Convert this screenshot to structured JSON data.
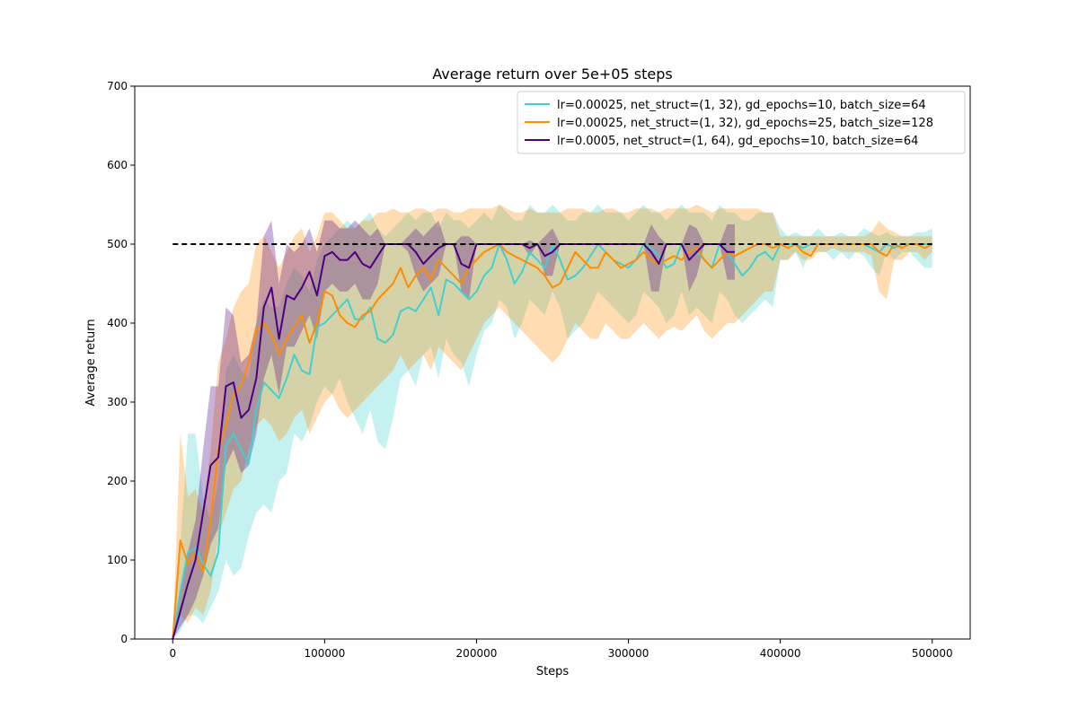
{
  "chart_data": {
    "type": "line",
    "title": "Average return over 5e+05 steps",
    "xlabel": "Steps",
    "ylabel": "Average return",
    "xlim": [
      -25000,
      525000
    ],
    "ylim": [
      0,
      700
    ],
    "xticks": [
      0,
      100000,
      200000,
      300000,
      400000,
      500000
    ],
    "xtick_labels": [
      "0",
      "100000",
      "200000",
      "300000",
      "400000",
      "500000"
    ],
    "yticks": [
      0,
      100,
      200,
      300,
      400,
      500,
      600,
      700
    ],
    "ytick_labels": [
      "0",
      "100",
      "200",
      "300",
      "400",
      "500",
      "600",
      "700"
    ],
    "grid": false,
    "legend_position": "top-right",
    "reference_line": {
      "y": 500,
      "x": [
        0,
        500000
      ],
      "style": "dashed",
      "color": "#000000"
    },
    "series": [
      {
        "name": "lr=0.00025, net_struct=(1, 32), gd_epochs=10, batch_size=64",
        "color": "#40d0d0",
        "x": [
          0,
          5000,
          10000,
          15000,
          20000,
          25000,
          30000,
          35000,
          40000,
          45000,
          50000,
          55000,
          60000,
          65000,
          70000,
          75000,
          80000,
          85000,
          90000,
          95000,
          100000,
          105000,
          110000,
          115000,
          120000,
          125000,
          130000,
          135000,
          140000,
          145000,
          150000,
          155000,
          160000,
          165000,
          170000,
          175000,
          180000,
          185000,
          190000,
          195000,
          200000,
          205000,
          210000,
          215000,
          220000,
          225000,
          230000,
          235000,
          240000,
          245000,
          250000,
          255000,
          260000,
          265000,
          270000,
          275000,
          280000,
          285000,
          290000,
          295000,
          300000,
          305000,
          310000,
          315000,
          320000,
          325000,
          330000,
          335000,
          340000,
          345000,
          350000,
          355000,
          360000,
          365000,
          370000,
          375000,
          380000,
          385000,
          390000,
          395000,
          400000,
          405000,
          410000,
          415000,
          420000,
          425000,
          430000,
          435000,
          440000,
          445000,
          450000,
          455000,
          460000,
          465000,
          470000,
          475000,
          480000,
          485000,
          490000,
          495000,
          500000
        ],
        "y": [
          0,
          60,
          110,
          115,
          95,
          80,
          110,
          245,
          260,
          240,
          222,
          290,
          325,
          315,
          305,
          330,
          360,
          340,
          335,
          395,
          400,
          410,
          420,
          430,
          405,
          405,
          420,
          380,
          375,
          385,
          415,
          420,
          415,
          430,
          445,
          410,
          455,
          450,
          440,
          430,
          440,
          460,
          470,
          500,
          480,
          450,
          465,
          490,
          480,
          470,
          500,
          480,
          455,
          460,
          470,
          485,
          500,
          490,
          480,
          475,
          470,
          480,
          500,
          495,
          485,
          470,
          475,
          500,
          480,
          490,
          480,
          470,
          500,
          490,
          475,
          460,
          470,
          485,
          490,
          480,
          500,
          500,
          500,
          495,
          500,
          500,
          500,
          500,
          500,
          500,
          500,
          500,
          495,
          490,
          500,
          495,
          500,
          500,
          500,
          500,
          500
        ],
        "lower": [
          0,
          10,
          30,
          30,
          20,
          40,
          60,
          100,
          80,
          90,
          130,
          160,
          170,
          160,
          200,
          210,
          260,
          250,
          270,
          300,
          320,
          310,
          330,
          300,
          280,
          260,
          290,
          250,
          240,
          280,
          330,
          340,
          320,
          360,
          370,
          330,
          380,
          360,
          350,
          320,
          360,
          390,
          400,
          430,
          420,
          380,
          400,
          430,
          420,
          410,
          440,
          420,
          380,
          390,
          400,
          420,
          440,
          430,
          420,
          410,
          400,
          410,
          440,
          430,
          420,
          400,
          410,
          440,
          410,
          420,
          410,
          400,
          440,
          430,
          410,
          400,
          410,
          420,
          430,
          420,
          480,
          480,
          490,
          470,
          490,
          490,
          490,
          480,
          490,
          480,
          490,
          485,
          470,
          460,
          490,
          480,
          490,
          490,
          480,
          470,
          470
        ],
        "upper": [
          0,
          120,
          260,
          260,
          180,
          150,
          200,
          340,
          360,
          340,
          330,
          400,
          430,
          420,
          420,
          450,
          470,
          460,
          440,
          480,
          500,
          510,
          520,
          530,
          520,
          530,
          540,
          520,
          510,
          520,
          530,
          540,
          530,
          540,
          540,
          520,
          540,
          530,
          530,
          520,
          530,
          540,
          530,
          550,
          540,
          530,
          530,
          550,
          540,
          540,
          550,
          540,
          530,
          530,
          540,
          540,
          550,
          540,
          540,
          540,
          530,
          540,
          550,
          540,
          540,
          530,
          540,
          550,
          540,
          540,
          540,
          530,
          550,
          540,
          540,
          530,
          530,
          540,
          540,
          540,
          520,
          510,
          515,
          510,
          510,
          520,
          510,
          510,
          515,
          510,
          510,
          520,
          515,
          510,
          515,
          510,
          510,
          510,
          515,
          515,
          520
        ]
      },
      {
        "name": "lr=0.00025, net_struct=(1, 32), gd_epochs=25, batch_size=128",
        "color": "#ff8c00",
        "x": [
          0,
          5000,
          10000,
          15000,
          20000,
          25000,
          30000,
          35000,
          40000,
          45000,
          50000,
          55000,
          60000,
          65000,
          70000,
          75000,
          80000,
          85000,
          90000,
          95000,
          100000,
          105000,
          110000,
          115000,
          120000,
          125000,
          130000,
          135000,
          140000,
          145000,
          150000,
          155000,
          160000,
          165000,
          170000,
          175000,
          180000,
          185000,
          190000,
          195000,
          200000,
          205000,
          210000,
          215000,
          220000,
          225000,
          230000,
          235000,
          240000,
          245000,
          250000,
          255000,
          260000,
          265000,
          270000,
          275000,
          280000,
          285000,
          290000,
          295000,
          300000,
          305000,
          310000,
          315000,
          320000,
          325000,
          330000,
          335000,
          340000,
          345000,
          350000,
          355000,
          360000,
          365000,
          370000,
          375000,
          380000,
          385000,
          390000,
          395000,
          400000,
          405000,
          410000,
          415000,
          420000,
          425000,
          430000,
          435000,
          440000,
          445000,
          450000,
          455000,
          460000,
          465000,
          470000,
          475000,
          480000,
          485000,
          490000,
          495000,
          500000
        ],
        "y": [
          0,
          125,
          95,
          110,
          85,
          150,
          240,
          270,
          310,
          320,
          350,
          390,
          400,
          385,
          360,
          380,
          395,
          410,
          375,
          400,
          440,
          435,
          410,
          400,
          395,
          410,
          415,
          430,
          440,
          450,
          470,
          445,
          460,
          470,
          455,
          480,
          470,
          460,
          450,
          470,
          480,
          490,
          495,
          500,
          490,
          485,
          480,
          475,
          470,
          460,
          445,
          450,
          470,
          490,
          480,
          470,
          470,
          490,
          480,
          470,
          475,
          480,
          490,
          480,
          475,
          480,
          485,
          480,
          490,
          495,
          480,
          470,
          480,
          490,
          485,
          490,
          495,
          500,
          500,
          495,
          500,
          495,
          500,
          490,
          485,
          500,
          500,
          500,
          500,
          500,
          500,
          500,
          500,
          490,
          485,
          500,
          495,
          500,
          500,
          495,
          500
        ],
        "lower": [
          0,
          30,
          20,
          40,
          30,
          60,
          130,
          160,
          190,
          200,
          240,
          270,
          280,
          270,
          250,
          260,
          280,
          290,
          260,
          280,
          300,
          310,
          290,
          280,
          290,
          300,
          310,
          320,
          330,
          340,
          360,
          340,
          350,
          360,
          340,
          370,
          360,
          350,
          340,
          360,
          380,
          400,
          410,
          420,
          410,
          400,
          390,
          380,
          370,
          360,
          350,
          360,
          380,
          400,
          390,
          380,
          380,
          400,
          390,
          380,
          380,
          390,
          400,
          390,
          380,
          390,
          395,
          390,
          400,
          410,
          390,
          380,
          390,
          400,
          400,
          410,
          420,
          430,
          440,
          440,
          480,
          480,
          490,
          480,
          480,
          490,
          490,
          495,
          490,
          490,
          490,
          490,
          485,
          440,
          430,
          480,
          480,
          490,
          490,
          480,
          490
        ],
        "upper": [
          0,
          260,
          180,
          190,
          160,
          240,
          350,
          380,
          420,
          440,
          450,
          500,
          510,
          490,
          470,
          490,
          510,
          520,
          490,
          510,
          540,
          540,
          530,
          520,
          520,
          530,
          530,
          540,
          540,
          545,
          540,
          540,
          545,
          545,
          540,
          545,
          545,
          540,
          540,
          545,
          545,
          545,
          545,
          550,
          545,
          540,
          540,
          545,
          540,
          540,
          540,
          540,
          545,
          545,
          545,
          540,
          540,
          545,
          545,
          540,
          540,
          545,
          545,
          545,
          540,
          545,
          545,
          545,
          545,
          550,
          545,
          540,
          545,
          545,
          545,
          545,
          545,
          545,
          540,
          540,
          510,
          510,
          510,
          510,
          510,
          510,
          510,
          510,
          510,
          510,
          510,
          510,
          515,
          530,
          520,
          515,
          510,
          510,
          510,
          510,
          510
        ]
      },
      {
        "name": "lr=0.0005, net_struct=(1, 64), gd_epochs=10, batch_size=64",
        "color": "#4b0082",
        "x": [
          0,
          5000,
          10000,
          15000,
          20000,
          25000,
          30000,
          35000,
          40000,
          45000,
          50000,
          55000,
          60000,
          65000,
          70000,
          75000,
          80000,
          85000,
          90000,
          95000,
          100000,
          105000,
          110000,
          115000,
          120000,
          125000,
          130000,
          135000,
          140000,
          145000,
          150000,
          155000,
          160000,
          165000,
          170000,
          175000,
          180000,
          185000,
          190000,
          195000,
          200000,
          205000,
          210000,
          215000,
          220000,
          225000,
          230000,
          235000,
          240000,
          245000,
          250000,
          255000,
          260000,
          265000,
          270000,
          275000,
          280000,
          285000,
          290000,
          295000,
          300000,
          305000,
          310000,
          315000,
          320000,
          325000,
          330000,
          335000,
          340000,
          345000,
          350000,
          355000,
          360000,
          365000,
          370000
        ],
        "y": [
          0,
          35,
          70,
          100,
          160,
          220,
          230,
          320,
          325,
          280,
          290,
          330,
          420,
          445,
          380,
          435,
          430,
          445,
          465,
          435,
          485,
          490,
          480,
          480,
          490,
          475,
          470,
          485,
          500,
          500,
          500,
          500,
          490,
          475,
          485,
          495,
          500,
          500,
          475,
          470,
          500,
          500,
          500,
          500,
          500,
          500,
          500,
          495,
          500,
          485,
          490,
          500,
          500,
          500,
          500,
          500,
          500,
          500,
          500,
          500,
          500,
          500,
          500,
          490,
          475,
          500,
          500,
          500,
          480,
          490,
          500,
          500,
          500,
          490,
          490
        ],
        "lower": [
          0,
          15,
          30,
          50,
          80,
          120,
          140,
          220,
          240,
          210,
          220,
          260,
          330,
          360,
          310,
          370,
          370,
          390,
          410,
          380,
          440,
          450,
          440,
          440,
          450,
          430,
          430,
          450,
          500,
          500,
          500,
          490,
          460,
          440,
          450,
          460,
          500,
          500,
          440,
          430,
          500,
          500,
          500,
          500,
          500,
          500,
          500,
          485,
          500,
          460,
          460,
          500,
          500,
          500,
          500,
          500,
          500,
          500,
          500,
          500,
          500,
          500,
          500,
          440,
          440,
          500,
          500,
          500,
          440,
          460,
          500,
          500,
          500,
          455,
          455
        ],
        "upper": [
          0,
          55,
          110,
          150,
          240,
          320,
          320,
          420,
          410,
          350,
          360,
          400,
          510,
          530,
          450,
          500,
          490,
          500,
          520,
          490,
          530,
          530,
          520,
          520,
          530,
          520,
          510,
          520,
          500,
          500,
          500,
          510,
          520,
          510,
          520,
          530,
          500,
          500,
          510,
          510,
          500,
          500,
          500,
          500,
          500,
          500,
          500,
          505,
          500,
          510,
          520,
          500,
          500,
          500,
          500,
          500,
          500,
          500,
          500,
          500,
          500,
          500,
          500,
          525,
          510,
          500,
          500,
          500,
          525,
          520,
          500,
          500,
          500,
          525,
          525
        ]
      }
    ]
  }
}
